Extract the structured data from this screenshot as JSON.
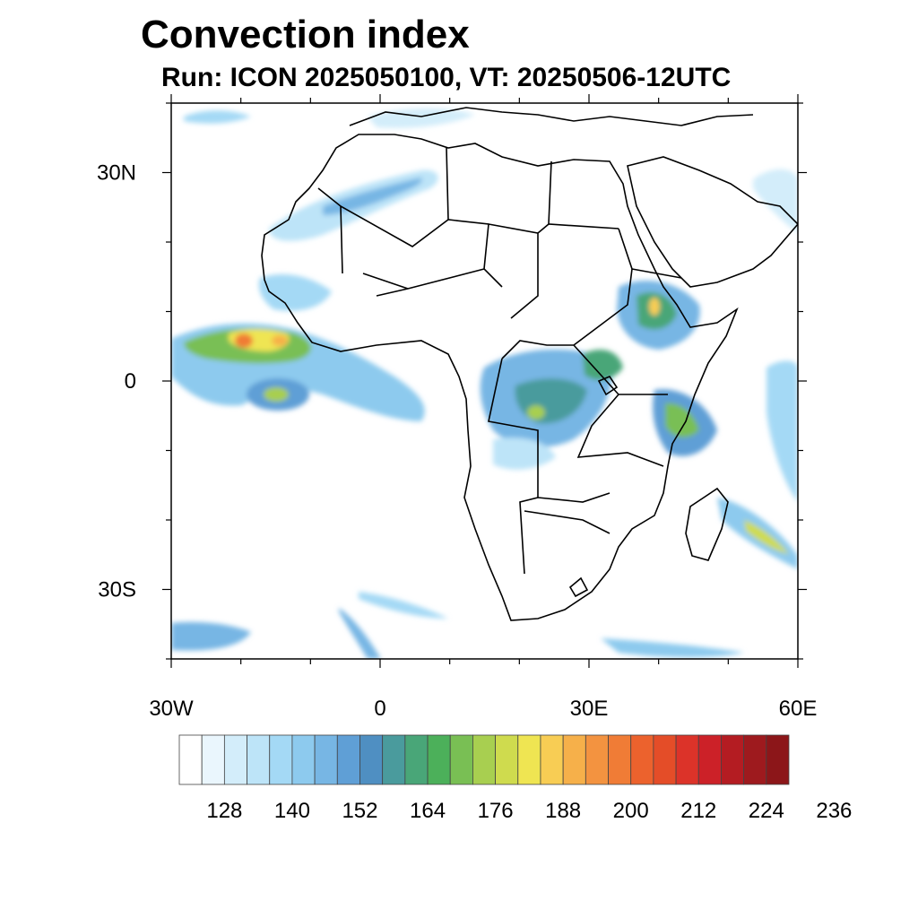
{
  "title": "Convection index",
  "subtitle": "Run: ICON 2025050100,  VT: 20250506-12UTC",
  "map": {
    "region": "Africa",
    "projection": "cylindrical equidistant",
    "lon_range": [
      -30,
      60
    ],
    "lat_range": [
      -40,
      40
    ],
    "lat_labels": [
      {
        "value": 30,
        "text": "30N"
      },
      {
        "value": 0,
        "text": "0"
      },
      {
        "value": -30,
        "text": "30S"
      }
    ],
    "lon_labels": [
      {
        "value": -30,
        "text": "30W"
      },
      {
        "value": 0,
        "text": "0"
      },
      {
        "value": 30,
        "text": "30E"
      },
      {
        "value": 60,
        "text": "60E"
      }
    ],
    "field": "convection index",
    "hotspots": [
      {
        "name": "west-atlantic-itcz",
        "lon": -19,
        "lat": 5.5,
        "level": 200
      },
      {
        "name": "gulf-of-guinea",
        "lon": -15,
        "lat": -2,
        "level": 172
      },
      {
        "name": "congo-basin",
        "lon": 22,
        "lat": -4,
        "level": 178
      },
      {
        "name": "ethiopian-highlands",
        "lon": 38,
        "lat": 10,
        "level": 200
      },
      {
        "name": "lake-victoria",
        "lon": 32,
        "lat": 2,
        "level": 176
      },
      {
        "name": "kenya-coast",
        "lon": 43,
        "lat": -4,
        "level": 176
      },
      {
        "name": "madagascar-east",
        "lon": 52,
        "lat": -22,
        "level": 190
      }
    ]
  },
  "colorbar": {
    "labels": [
      "128",
      "140",
      "152",
      "164",
      "176",
      "188",
      "200",
      "212",
      "224",
      "236"
    ],
    "colors": [
      "#ffffff",
      "#eaf6fd",
      "#d3edfa",
      "#bde4f8",
      "#a4d9f5",
      "#8dcaee",
      "#77b6e4",
      "#5f9fd6",
      "#4f8fc2",
      "#4a9b9d",
      "#49a678",
      "#4cb05a",
      "#79bf54",
      "#a8cf50",
      "#cfdb4e",
      "#efe552",
      "#f8cd54",
      "#f6b04a",
      "#f39340",
      "#f07c36",
      "#ec622d",
      "#e44d28",
      "#dc3329",
      "#cc2128",
      "#b41c22",
      "#9e1a1e",
      "#8c1619"
    ]
  }
}
